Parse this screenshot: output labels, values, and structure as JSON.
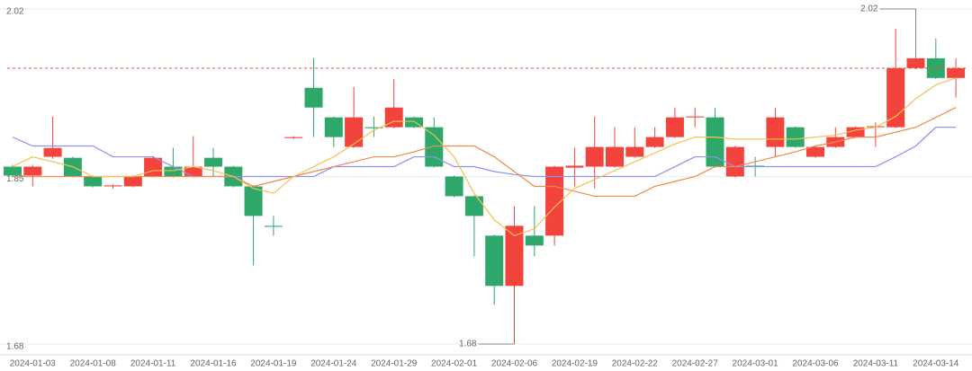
{
  "chart_data": {
    "type": "candlestick",
    "categories": [
      null,
      "2024-01-03",
      null,
      null,
      "2024-01-08",
      null,
      null,
      "2024-01-11",
      null,
      null,
      "2024-01-16",
      null,
      null,
      "2024-01-19",
      null,
      null,
      "2024-01-24",
      null,
      null,
      "2024-01-29",
      null,
      null,
      "2024-02-01",
      null,
      null,
      "2024-02-06",
      null,
      null,
      "2024-02-19",
      null,
      null,
      "2024-02-22",
      null,
      null,
      "2024-02-27",
      null,
      null,
      "2024-03-01",
      null,
      null,
      "2024-03-06",
      null,
      null,
      "2024-03-11",
      null,
      null,
      "2024-03-14",
      null
    ],
    "ohlc": [
      [
        1.86,
        1.851,
        1.849,
        1.862
      ],
      [
        1.851,
        1.86,
        1.84,
        1.862
      ],
      [
        1.87,
        1.879,
        1.868,
        1.911
      ],
      [
        1.869,
        1.85,
        1.849,
        1.87
      ],
      [
        1.85,
        1.84,
        1.839,
        1.851
      ],
      [
        1.84,
        1.841,
        1.838,
        1.842
      ],
      [
        1.84,
        1.85,
        1.839,
        1.851
      ],
      [
        1.85,
        1.869,
        1.849,
        1.871
      ],
      [
        1.86,
        1.85,
        1.849,
        1.879
      ],
      [
        1.85,
        1.86,
        1.849,
        1.891
      ],
      [
        1.869,
        1.86,
        1.85,
        1.879
      ],
      [
        1.86,
        1.84,
        1.839,
        1.861
      ],
      [
        1.84,
        1.81,
        1.76,
        1.841
      ],
      [
        1.8,
        1.799,
        1.79,
        1.81
      ],
      [
        1.889,
        1.89,
        1.888,
        1.891
      ],
      [
        1.94,
        1.92,
        1.89,
        1.97
      ],
      [
        1.91,
        1.89,
        1.88,
        1.911
      ],
      [
        1.88,
        1.91,
        1.879,
        1.941
      ],
      [
        1.9,
        1.899,
        1.89,
        1.911
      ],
      [
        1.9,
        1.92,
        1.899,
        1.949
      ],
      [
        1.91,
        1.9,
        1.899,
        1.911
      ],
      [
        1.9,
        1.86,
        1.859,
        1.91
      ],
      [
        1.85,
        1.83,
        1.829,
        1.851
      ],
      [
        1.83,
        1.81,
        1.769,
        1.831
      ],
      [
        1.79,
        1.739,
        1.72,
        1.791
      ],
      [
        1.739,
        1.8,
        1.68,
        1.82
      ],
      [
        1.79,
        1.78,
        1.769,
        1.82
      ],
      [
        1.79,
        1.86,
        1.78,
        1.861
      ],
      [
        1.859,
        1.861,
        1.84,
        1.879
      ],
      [
        1.86,
        1.88,
        1.838,
        1.911
      ],
      [
        1.86,
        1.88,
        1.859,
        1.9
      ],
      [
        1.87,
        1.88,
        1.869,
        1.9
      ],
      [
        1.88,
        1.89,
        1.879,
        1.9
      ],
      [
        1.89,
        1.91,
        1.889,
        1.92
      ],
      [
        1.91,
        1.911,
        1.9,
        1.92
      ],
      [
        1.91,
        1.86,
        1.859,
        1.92
      ],
      [
        1.85,
        1.88,
        1.849,
        1.881
      ],
      [
        1.861,
        1.86,
        1.85,
        1.87
      ],
      [
        1.88,
        1.91,
        1.87,
        1.92
      ],
      [
        1.9,
        1.88,
        1.879,
        1.901
      ],
      [
        1.87,
        1.88,
        1.869,
        1.881
      ],
      [
        1.88,
        1.89,
        1.879,
        1.9
      ],
      [
        1.89,
        1.9,
        1.889,
        1.901
      ],
      [
        1.9,
        1.901,
        1.88,
        1.905
      ],
      [
        1.9,
        1.96,
        1.899,
        2.0
      ],
      [
        1.96,
        1.97,
        1.959,
        2.02
      ],
      [
        1.97,
        1.95,
        1.949,
        1.99
      ],
      [
        1.95,
        1.96,
        1.93,
        1.97
      ]
    ],
    "up_color": "#f2443c",
    "down_color": "#2ea86a",
    "series": [
      {
        "color": "#8d92ee",
        "values": [
          1.89,
          1.881,
          1.881,
          1.881,
          1.881,
          1.87,
          1.87,
          1.87,
          1.86,
          1.85,
          1.85,
          1.85,
          1.85,
          1.85,
          1.85,
          1.85,
          1.86,
          1.86,
          1.86,
          1.86,
          1.87,
          1.87,
          1.86,
          1.86,
          1.855,
          1.852,
          1.85,
          1.85,
          1.85,
          1.85,
          1.85,
          1.85,
          1.85,
          1.86,
          1.87,
          1.87,
          1.86,
          1.86,
          1.86,
          1.86,
          1.86,
          1.86,
          1.86,
          1.86,
          1.87,
          1.881,
          1.9,
          1.9
        ]
      },
      {
        "color": "#f08a4e",
        "values": [
          1.85,
          1.85,
          1.85,
          1.85,
          1.85,
          1.85,
          1.85,
          1.85,
          1.85,
          1.85,
          1.85,
          1.85,
          1.84,
          1.845,
          1.85,
          1.855,
          1.86,
          1.865,
          1.87,
          1.87,
          1.875,
          1.881,
          1.881,
          1.881,
          1.87,
          1.855,
          1.84,
          1.84,
          1.835,
          1.83,
          1.83,
          1.83,
          1.84,
          1.845,
          1.85,
          1.86,
          1.86,
          1.865,
          1.87,
          1.875,
          1.881,
          1.885,
          1.89,
          1.89,
          1.895,
          1.9,
          1.91,
          1.92
        ]
      },
      {
        "color": "#f5c150",
        "values": [
          1.86,
          1.87,
          1.865,
          1.86,
          1.85,
          1.85,
          1.85,
          1.856,
          1.856,
          1.86,
          1.856,
          1.85,
          1.838,
          1.833,
          1.85,
          1.86,
          1.87,
          1.883,
          1.897,
          1.906,
          1.906,
          1.892,
          1.87,
          1.833,
          1.806,
          1.79,
          1.797,
          1.819,
          1.838,
          1.847,
          1.856,
          1.865,
          1.874,
          1.883,
          1.89,
          1.89,
          1.888,
          1.888,
          1.888,
          1.888,
          1.89,
          1.892,
          1.897,
          1.9,
          1.911,
          1.929,
          1.943,
          1.95
        ]
      }
    ],
    "mark_line": 1.96,
    "max_point": {
      "index": 45,
      "value": 2.02
    },
    "min_point": {
      "index": 25,
      "value": 1.68
    },
    "ylim": [
      1.68,
      2.02
    ],
    "yticks": [
      1.68,
      1.85,
      2.02
    ],
    "grid": true
  }
}
